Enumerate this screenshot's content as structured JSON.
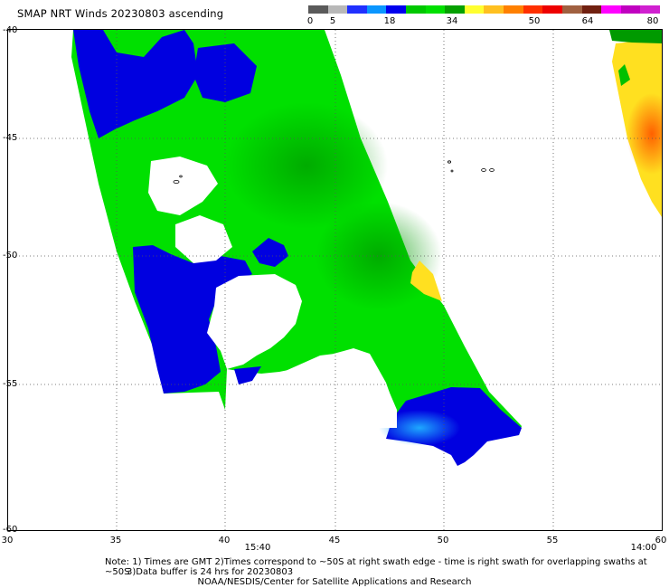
{
  "title": "SMAP NRT Winds 20230803 ascending",
  "colorbar": {
    "ticks": [
      "0",
      "5",
      "18",
      "34",
      "50",
      "64",
      "80"
    ],
    "segments": [
      "#5a5a5a",
      "#b8b8b8",
      "#2030ff",
      "#0a96ff",
      "#0000ee",
      "#00c800",
      "#00e000",
      "#05a000",
      "#ffff30",
      "#ffc020",
      "#ff8000",
      "#ff3000",
      "#ee0000",
      "#a06040",
      "#702010",
      "#ff00ff",
      "#c000c0",
      "#d020d0"
    ]
  },
  "axes": {
    "lat_labels": [
      "-40",
      "-45",
      "-50",
      "-55",
      "-60"
    ],
    "lon_labels": [
      "30",
      "35",
      "40",
      "45",
      "50",
      "55",
      "60"
    ],
    "time_labels": [
      "15:40",
      "14:00"
    ]
  },
  "wind_colors": {
    "blue": "#0000e0",
    "green": "#00e000",
    "dark_green": "#009a00",
    "yellow": "#ffe020",
    "orange": "#ff7000",
    "light_blue": "#1ea8ff"
  },
  "notes": {
    "line1": "Note: 1) Times are GMT 2)Times correspond to ~50S at right swath edge - time is right swath for overlapping swaths at ~50S",
    "line2": "3)Data buffer is 24 hrs for 20230803",
    "credit": "NOAA/NESDIS/Center for Satellite Applications and Research"
  }
}
